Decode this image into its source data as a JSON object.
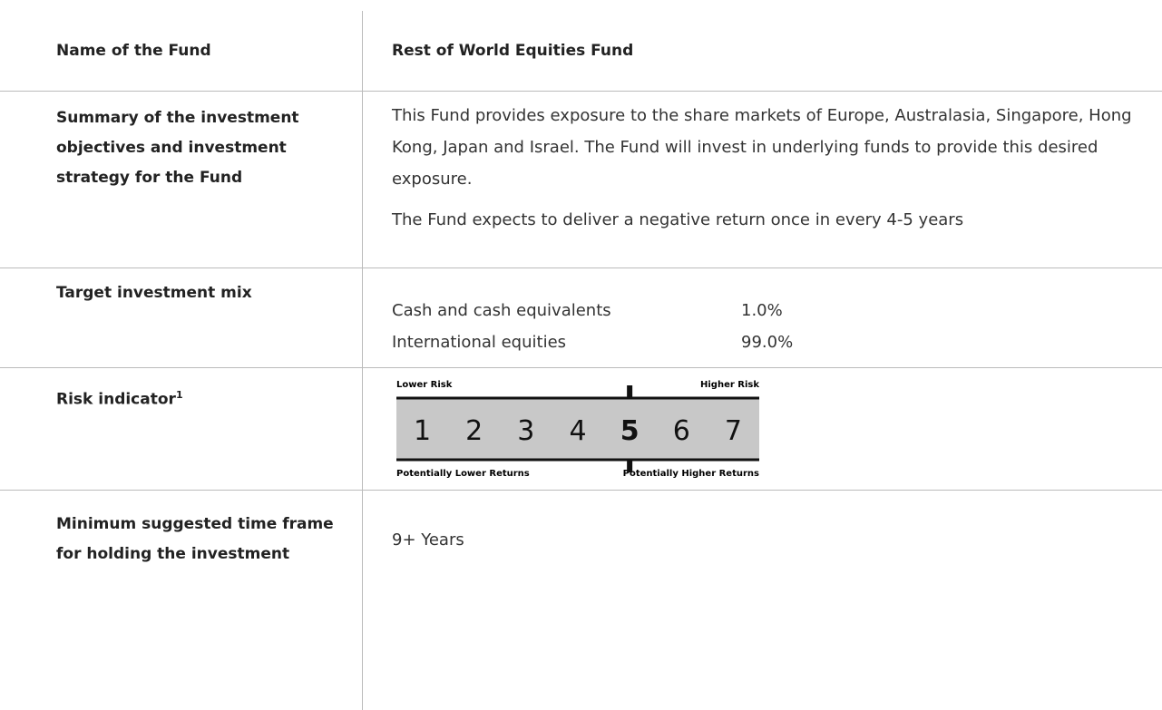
{
  "table": {
    "rows": [
      {
        "label": "Name of the Fund",
        "value": "Rest of World Equities Fund"
      },
      {
        "label": "Summary of the investment objectives and investment strategy for the Fund",
        "paragraphs": [
          "This Fund provides exposure to the share markets of Europe, Australasia, Singapore, Hong Kong, Japan  and Israel.  The Fund will invest in underlying funds to provide this desired exposure.",
          "The Fund expects to deliver a negative return once in every 4-5 years"
        ]
      },
      {
        "label": "Target investment mix",
        "mix": [
          {
            "asset": "Cash and cash equivalents",
            "share": "1.0%"
          },
          {
            "asset": "International equities",
            "share": "99.0%"
          }
        ]
      },
      {
        "label": "Risk indicator",
        "footnote": "1",
        "risk": {
          "lower": "Lower Risk",
          "higher": "Higher Risk",
          "lower_returns": "Potentially Lower Returns",
          "higher_returns": "Potentially Higher Returns",
          "levels": [
            1,
            2,
            3,
            4,
            5,
            6,
            7
          ],
          "selected": 5
        }
      },
      {
        "label": "Minimum suggested time frame for holding the investment",
        "value": "9+ Years"
      }
    ]
  }
}
